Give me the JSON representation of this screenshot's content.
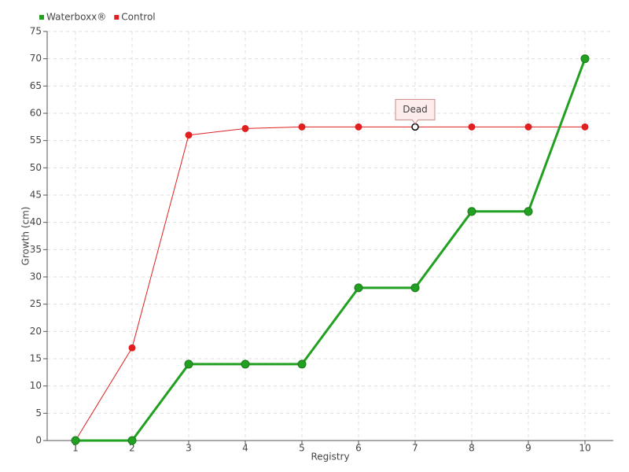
{
  "chart_data": {
    "type": "line",
    "xlabel": "Registry",
    "ylabel": "Growth (cm)",
    "x": [
      1,
      2,
      3,
      4,
      5,
      6,
      7,
      8,
      9,
      10
    ],
    "xlim": [
      0.5,
      10.5
    ],
    "xticks": [
      1,
      2,
      3,
      4,
      5,
      6,
      7,
      8,
      9,
      10
    ],
    "ylim": [
      0,
      75
    ],
    "yticks": [
      0,
      5,
      10,
      15,
      20,
      25,
      30,
      35,
      40,
      45,
      50,
      55,
      60,
      65,
      70,
      75
    ],
    "grid": true,
    "legend": "top-left",
    "series": [
      {
        "name": "Waterboxx®",
        "color": "#22a022",
        "values": [
          0,
          0,
          14,
          14,
          14,
          28,
          28,
          42,
          42,
          70
        ]
      },
      {
        "name": "Control",
        "color": "#e02020",
        "values": [
          0,
          17,
          56,
          57.2,
          57.5,
          57.5,
          57.5,
          57.5,
          57.5,
          57.5
        ]
      }
    ],
    "annotations": [
      {
        "text": "Dead",
        "x": 7
      }
    ]
  }
}
